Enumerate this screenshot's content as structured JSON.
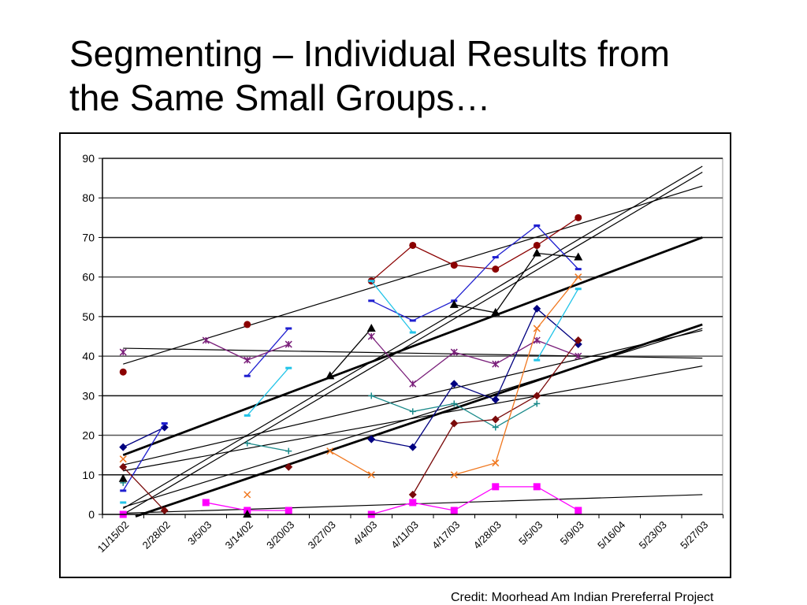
{
  "slide": {
    "title_line1": "Segmenting – Individual Results from",
    "title_line2": "the Same Small Groups…",
    "credit": "Credit:  Moorhead Am Indian Prereferral Project"
  },
  "chart_data": {
    "type": "line",
    "title": "",
    "xlabel": "",
    "ylabel": "",
    "ylim": [
      0,
      90
    ],
    "yticks": [
      0,
      10,
      20,
      30,
      40,
      50,
      60,
      70,
      80,
      90
    ],
    "grid": true,
    "legend": "none",
    "categories": [
      "11/15/02",
      "2/28/02",
      "3/5/03",
      "3/14/02",
      "3/20/03",
      "3/27/03",
      "4/4/03",
      "4/11/03",
      "4/17/03",
      "4/28/03",
      "5/5/03",
      "5/9/03",
      "5/16/04",
      "5/23/03",
      "5/27/03"
    ],
    "series": [
      {
        "name": "student-dark-red-circle",
        "color": "#8B0000",
        "marker": "circle",
        "segments": [
          [
            [
              0,
              36
            ]
          ],
          [
            [
              3,
              48
            ]
          ],
          [
            [
              6,
              59
            ],
            [
              7,
              68
            ],
            [
              8,
              63
            ],
            [
              9,
              62
            ],
            [
              10,
              68
            ],
            [
              11,
              75
            ]
          ]
        ]
      },
      {
        "name": "student-navy-diamond",
        "color": "#000080",
        "marker": "diamond",
        "segments": [
          [
            [
              0,
              17
            ],
            [
              1,
              22
            ]
          ],
          [
            [
              6,
              19
            ],
            [
              7,
              17
            ],
            [
              8,
              33
            ],
            [
              9,
              29
            ],
            [
              10,
              52
            ],
            [
              11,
              43
            ]
          ]
        ]
      },
      {
        "name": "student-blue-dash",
        "color": "#1f1fd0",
        "marker": "dash",
        "segments": [
          [
            [
              0,
              6
            ],
            [
              1,
              23
            ]
          ],
          [
            [
              3,
              35
            ],
            [
              4,
              47
            ]
          ],
          [
            [
              6,
              54
            ],
            [
              7,
              49
            ],
            [
              8,
              54
            ],
            [
              9,
              65
            ],
            [
              10,
              73
            ],
            [
              11,
              62
            ]
          ]
        ]
      },
      {
        "name": "student-purple-star",
        "color": "#7a1f7a",
        "marker": "star",
        "segments": [
          [
            [
              0,
              41
            ]
          ],
          [
            [
              2,
              44
            ],
            [
              3,
              39
            ],
            [
              4,
              43
            ]
          ],
          [
            [
              6,
              45
            ],
            [
              7,
              33
            ],
            [
              8,
              41
            ],
            [
              9,
              38
            ],
            [
              10,
              44
            ],
            [
              11,
              40
            ]
          ]
        ]
      },
      {
        "name": "student-cyan-dash",
        "color": "#22c4e8",
        "marker": "dash",
        "segments": [
          [
            [
              0,
              3
            ]
          ],
          [
            [
              3,
              25
            ],
            [
              4,
              37
            ]
          ],
          [
            [
              6,
              59
            ],
            [
              7,
              46
            ]
          ],
          [
            [
              10,
              39
            ],
            [
              11,
              57
            ]
          ]
        ]
      },
      {
        "name": "student-teal-plus",
        "color": "#1a8a8a",
        "marker": "plus",
        "segments": [
          [
            [
              0,
              8
            ]
          ],
          [
            [
              3,
              18
            ],
            [
              4,
              16
            ]
          ],
          [
            [
              6,
              30
            ],
            [
              7,
              26
            ],
            [
              8,
              28
            ],
            [
              9,
              22
            ],
            [
              10,
              28
            ]
          ]
        ]
      },
      {
        "name": "student-maroon-diamond",
        "color": "#7a0a0a",
        "marker": "diamond",
        "segments": [
          [
            [
              0,
              12
            ],
            [
              1,
              1
            ]
          ],
          [
            [
              4,
              12
            ]
          ],
          [
            [
              7,
              5
            ],
            [
              8,
              23
            ],
            [
              9,
              24
            ],
            [
              10,
              30
            ],
            [
              11,
              44
            ]
          ]
        ]
      },
      {
        "name": "student-orange-x",
        "color": "#f07820",
        "marker": "x",
        "segments": [
          [
            [
              0,
              14
            ]
          ],
          [
            [
              3,
              5
            ]
          ],
          [
            [
              5,
              16
            ],
            [
              6,
              10
            ]
          ],
          [
            [
              8,
              10
            ],
            [
              9,
              13
            ],
            [
              10,
              47
            ],
            [
              11,
              60
            ]
          ]
        ]
      },
      {
        "name": "student-magenta-square",
        "color": "#ff00ff",
        "marker": "square",
        "segments": [
          [
            [
              0,
              0
            ]
          ],
          [
            [
              2,
              3
            ],
            [
              3,
              1
            ],
            [
              4,
              1
            ]
          ],
          [
            [
              6,
              0
            ],
            [
              7,
              3
            ],
            [
              8,
              1
            ],
            [
              9,
              7
            ],
            [
              10,
              7
            ],
            [
              11,
              1
            ]
          ]
        ]
      },
      {
        "name": "student-black-triangle",
        "color": "#000000",
        "marker": "triangle",
        "segments": [
          [
            [
              0,
              9
            ]
          ],
          [
            [
              3,
              0
            ]
          ],
          [
            [
              5,
              35
            ],
            [
              6,
              47
            ],
            [
              5,
              35
            ]
          ],
          [
            [
              8,
              53
            ],
            [
              9,
              51
            ],
            [
              10,
              66
            ],
            [
              11,
              65
            ]
          ]
        ]
      }
    ],
    "trendlines": [
      {
        "from": [
          0,
          38
        ],
        "to": [
          14,
          83
        ],
        "bold": false
      },
      {
        "from": [
          0,
          42
        ],
        "to": [
          14,
          39.5
        ],
        "bold": false
      },
      {
        "from": [
          0,
          15
        ],
        "to": [
          14,
          70
        ],
        "bold": true
      },
      {
        "from": [
          0,
          0
        ],
        "to": [
          14,
          86.5
        ],
        "bold": false
      },
      {
        "from": [
          0,
          1.5
        ],
        "to": [
          14,
          88
        ],
        "bold": false
      },
      {
        "from": [
          0,
          12.5
        ],
        "to": [
          14,
          46.5
        ],
        "bold": false
      },
      {
        "from": [
          0,
          11
        ],
        "to": [
          14,
          37.5
        ],
        "bold": false
      },
      {
        "from": [
          0.3,
          -0.5
        ],
        "to": [
          14,
          48
        ],
        "bold": true
      },
      {
        "from": [
          0,
          1.8
        ],
        "to": [
          14,
          47
        ],
        "bold": false
      },
      {
        "from": [
          0,
          0.3
        ],
        "to": [
          14,
          5
        ],
        "bold": false
      }
    ]
  }
}
